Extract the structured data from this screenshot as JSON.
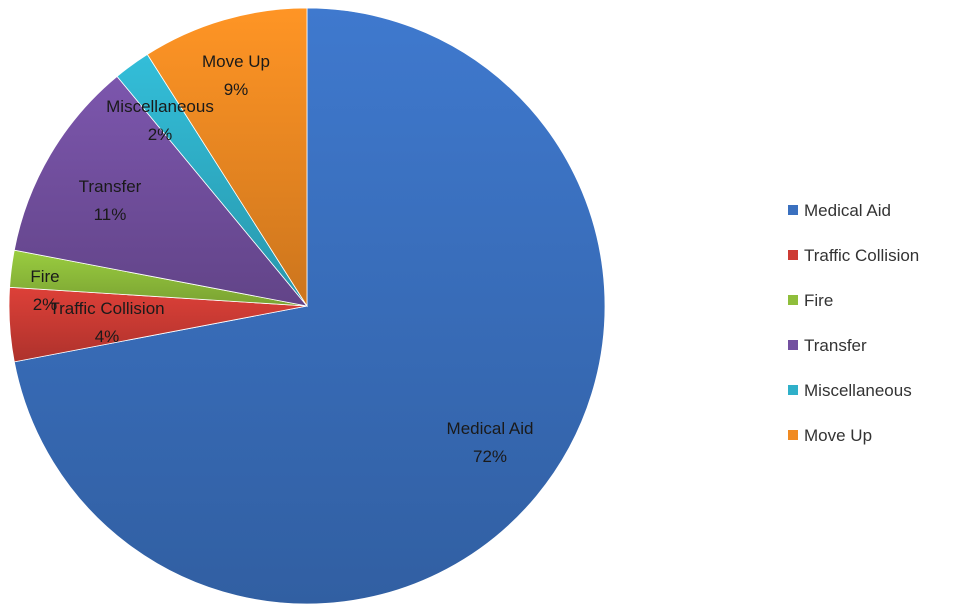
{
  "chart_data": {
    "type": "pie",
    "title": "",
    "start_angle_deg": 0,
    "direction": "clockwise",
    "slices": [
      {
        "name": "Medical Aid",
        "value": 72,
        "label": "72%",
        "color": "#3a70bf"
      },
      {
        "name": "Traffic Collision",
        "value": 4,
        "label": "4%",
        "color": "#cd3b34"
      },
      {
        "name": "Fire",
        "value": 2,
        "label": "2%",
        "color": "#8fbe3b"
      },
      {
        "name": "Transfer",
        "value": 11,
        "label": "11%",
        "color": "#7350a0"
      },
      {
        "name": "Miscellaneous",
        "value": 2,
        "label": "2%",
        "color": "#2fb0c9"
      },
      {
        "name": "Move Up",
        "value": 9,
        "label": "9%",
        "color": "#f08a22"
      }
    ],
    "legend": {
      "position": "right",
      "entries": [
        "Medical Aid",
        "Traffic Collision",
        "Fire",
        "Transfer",
        "Miscellaneous",
        "Move Up"
      ]
    }
  }
}
